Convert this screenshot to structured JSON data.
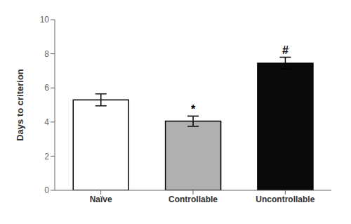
{
  "chart_data": {
    "type": "bar",
    "categories": [
      "Naïve",
      "Controllable",
      "Uncontrollable"
    ],
    "values": [
      5.3,
      4.05,
      7.45
    ],
    "errors": [
      0.35,
      0.3,
      0.35
    ],
    "colors": [
      "#ffffff",
      "#b0b0b0",
      "#0a0a0a"
    ],
    "annotations": [
      null,
      "*",
      "#"
    ],
    "ylabel": "Days to criterion",
    "ylim": [
      0,
      10
    ],
    "yticks": [
      0,
      2,
      4,
      6,
      8,
      10
    ],
    "grid": false
  }
}
